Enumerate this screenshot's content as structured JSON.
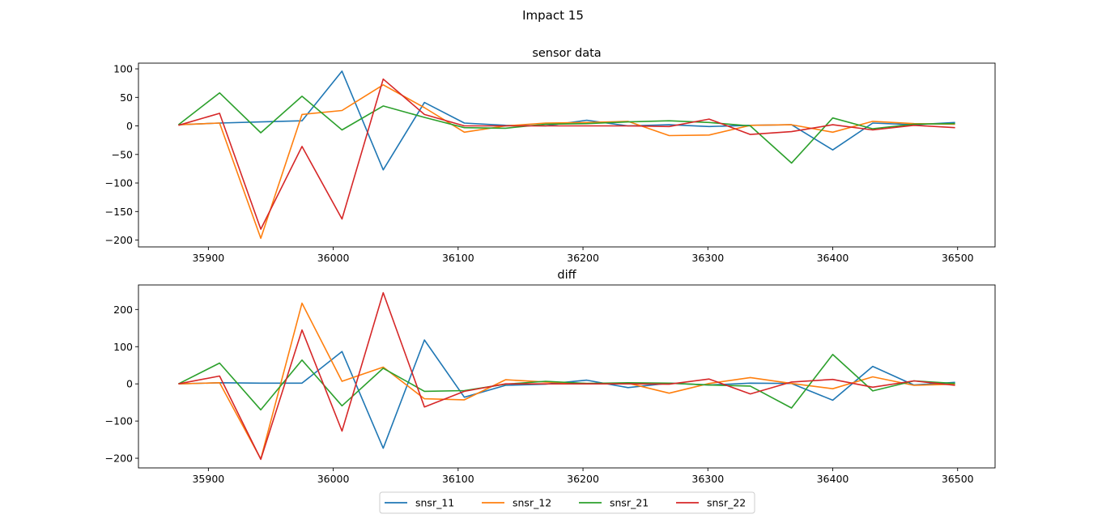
{
  "figure": {
    "title": "Impact 15"
  },
  "chart_data": [
    {
      "type": "line",
      "title": "sensor data",
      "xlabel": "",
      "ylabel": "",
      "xlim": [
        35844,
        36530
      ],
      "ylim": [
        -212,
        110
      ],
      "xticks": [
        35900,
        36000,
        36100,
        36200,
        36300,
        36400,
        36500
      ],
      "yticks": [
        -200,
        -150,
        -100,
        -50,
        0,
        50,
        100
      ],
      "grid": false,
      "x": [
        35876,
        35909,
        35942,
        35975,
        36007,
        36040,
        36073,
        36105,
        36138,
        36170,
        36203,
        36236,
        36269,
        36301,
        36334,
        36367,
        36400,
        36432,
        36465,
        36498
      ],
      "series": [
        {
          "name": "snsr_11",
          "color": "#1f77b4",
          "values": [
            2,
            5,
            7,
            9,
            96,
            -77,
            41,
            5,
            1,
            0,
            10,
            0,
            2,
            -1,
            1,
            2,
            -42,
            5,
            2,
            6
          ]
        },
        {
          "name": "snsr_12",
          "color": "#ff7f0e",
          "values": [
            2,
            5,
            -197,
            20,
            27,
            72,
            32,
            -11,
            0,
            5,
            6,
            8,
            -17,
            -16,
            1,
            2,
            -11,
            8,
            4,
            3
          ]
        },
        {
          "name": "snsr_21",
          "color": "#2ca02c",
          "values": [
            2,
            58,
            -12,
            52,
            -7,
            35,
            15,
            -3,
            -4,
            3,
            4,
            7,
            9,
            6,
            0,
            -65,
            14,
            -5,
            3,
            4
          ]
        },
        {
          "name": "snsr_22",
          "color": "#d62728",
          "values": [
            1,
            22,
            -181,
            -36,
            -163,
            82,
            20,
            0,
            0,
            0,
            0,
            0,
            -1,
            12,
            -15,
            -10,
            2,
            -7,
            1,
            -3
          ]
        }
      ]
    },
    {
      "type": "line",
      "title": "diff",
      "xlabel": "",
      "ylabel": "",
      "xlim": [
        35844,
        36530
      ],
      "ylim": [
        -226,
        266
      ],
      "xticks": [
        35900,
        36000,
        36100,
        36200,
        36300,
        36400,
        36500
      ],
      "yticks": [
        -200,
        -100,
        0,
        100,
        200
      ],
      "grid": false,
      "x": [
        35876,
        35909,
        35942,
        35975,
        36007,
        36040,
        36073,
        36105,
        36138,
        36170,
        36203,
        36236,
        36269,
        36301,
        36334,
        36367,
        36400,
        36432,
        36465,
        36498
      ],
      "series": [
        {
          "name": "snsr_11",
          "color": "#1f77b4",
          "values": [
            0,
            3,
            2,
            2,
            87,
            -173,
            118,
            -36,
            -4,
            -1,
            10,
            -10,
            2,
            -3,
            2,
            1,
            -44,
            47,
            -3,
            4
          ]
        },
        {
          "name": "snsr_12",
          "color": "#ff7f0e",
          "values": [
            0,
            3,
            -202,
            217,
            7,
            45,
            -40,
            -43,
            11,
            5,
            1,
            2,
            -25,
            1,
            17,
            1,
            -13,
            19,
            -4,
            -1
          ]
        },
        {
          "name": "snsr_21",
          "color": "#2ca02c",
          "values": [
            0,
            56,
            -70,
            64,
            -59,
            42,
            -20,
            -18,
            -1,
            7,
            1,
            3,
            2,
            -3,
            -6,
            -65,
            79,
            -19,
            8,
            1
          ]
        },
        {
          "name": "snsr_22",
          "color": "#d62728",
          "values": [
            0,
            21,
            -203,
            145,
            -127,
            245,
            -62,
            -20,
            0,
            0,
            0,
            0,
            -1,
            13,
            -27,
            5,
            12,
            -9,
            8,
            -4
          ]
        }
      ]
    }
  ],
  "legend": {
    "placement": "bottom-center",
    "entries": [
      "snsr_11",
      "snsr_12",
      "snsr_21",
      "snsr_22"
    ],
    "colors": [
      "#1f77b4",
      "#ff7f0e",
      "#2ca02c",
      "#d62728"
    ]
  }
}
